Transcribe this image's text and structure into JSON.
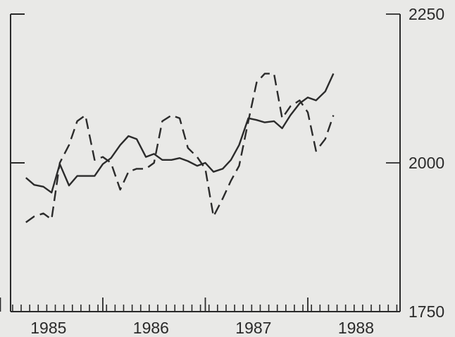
{
  "chart_data": {
    "type": "line",
    "title": "",
    "xlabel": "",
    "ylabel": "",
    "x_tick_labels": [
      "1985",
      "1986",
      "1987",
      "1988"
    ],
    "x_tick_values": [
      1985,
      1986,
      1987,
      1988
    ],
    "y_tick_labels": [
      "2250",
      "2000",
      "1750"
    ],
    "y_tick_values": [
      2250,
      2000,
      1750
    ],
    "ylim": [
      1750,
      2250
    ],
    "xlim": [
      1984.6,
      1988.4
    ],
    "y_axis_side": "right",
    "grid": false,
    "legend": "none",
    "series": [
      {
        "style": "solid",
        "color": "#2b2b2b",
        "x": [
          1984.75,
          1984.83,
          1984.92,
          1985.0,
          1985.08,
          1985.17,
          1985.25,
          1985.33,
          1985.42,
          1985.5,
          1985.58,
          1985.67,
          1985.75,
          1985.83,
          1985.92,
          1986.0,
          1986.08,
          1986.17,
          1986.25,
          1986.33,
          1986.42,
          1986.5,
          1986.58,
          1986.67,
          1986.75,
          1986.83,
          1986.92,
          1987.0,
          1987.08,
          1987.17,
          1987.25,
          1987.33,
          1987.42,
          1987.5,
          1987.58,
          1987.67,
          1987.75
        ],
        "values": [
          1975,
          1963,
          1960,
          1950,
          1998,
          1962,
          1978,
          1978,
          1978,
          1998,
          2008,
          2030,
          2045,
          2040,
          2010,
          2015,
          2005,
          2005,
          2008,
          2003,
          1995,
          2000,
          1985,
          1990,
          2005,
          2030,
          2075,
          2072,
          2068,
          2070,
          2058,
          2080,
          2100,
          2110,
          2105,
          2120,
          2150
        ]
      },
      {
        "style": "dashed",
        "color": "#2b2b2b",
        "x": [
          1984.75,
          1984.83,
          1984.92,
          1985.0,
          1985.08,
          1985.17,
          1985.25,
          1985.33,
          1985.42,
          1985.5,
          1985.58,
          1985.67,
          1985.75,
          1985.83,
          1985.92,
          1986.0,
          1986.08,
          1986.17,
          1986.25,
          1986.33,
          1986.42,
          1986.5,
          1986.58,
          1986.67,
          1986.75,
          1986.83,
          1986.92,
          1987.0,
          1987.08,
          1987.17,
          1987.25,
          1987.33,
          1987.42,
          1987.5,
          1987.58,
          1987.67,
          1987.75
        ],
        "values": [
          1900,
          1910,
          1915,
          1905,
          2000,
          2030,
          2070,
          2080,
          2005,
          2010,
          2000,
          1955,
          1985,
          1990,
          1990,
          2000,
          2070,
          2080,
          2075,
          2025,
          2010,
          1990,
          1910,
          1940,
          1970,
          1995,
          2070,
          2135,
          2150,
          2150,
          2075,
          2095,
          2105,
          2085,
          2020,
          2040,
          2080
        ]
      }
    ]
  }
}
